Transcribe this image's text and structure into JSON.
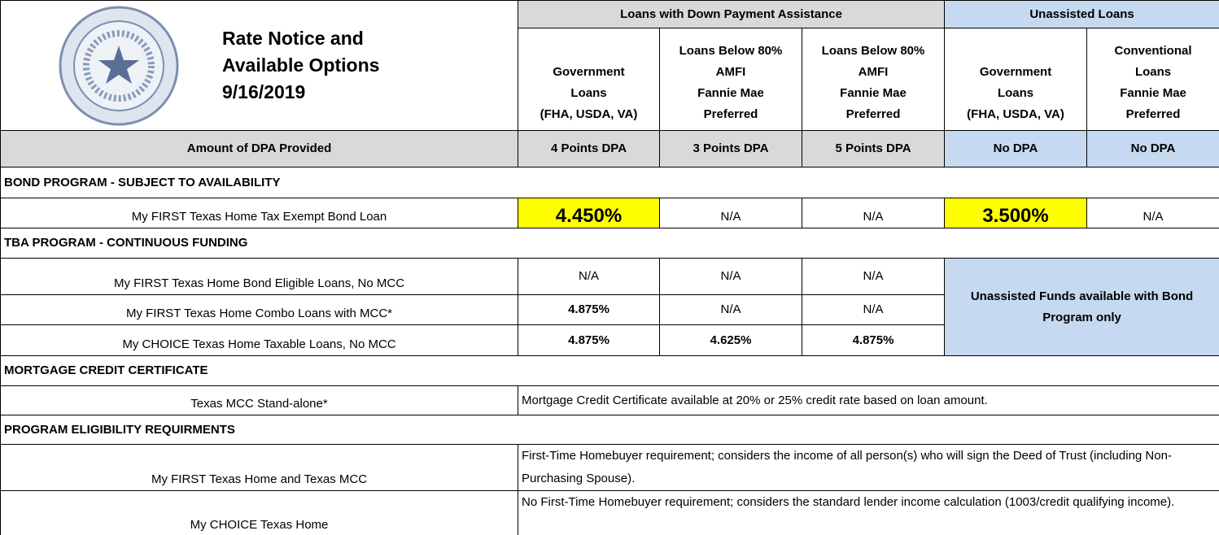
{
  "header": {
    "title": [
      "Rate Notice and",
      "Available Options",
      "9/16/2019"
    ],
    "group_assisted": "Loans with Down Payment Assistance",
    "group_unassisted": "Unassisted Loans",
    "columns": [
      [
        "Government",
        "Loans",
        "(FHA, USDA, VA)"
      ],
      [
        "Loans Below 80%",
        "AMFI",
        "Fannie Mae",
        "Preferred"
      ],
      [
        "Loans Below 80%",
        "AMFI",
        "Fannie Mae",
        "Preferred"
      ],
      [
        "Government",
        "Loans",
        "(FHA, USDA, VA)"
      ],
      [
        "Conventional",
        "Loans",
        "Fannie Mae",
        "Preferred"
      ]
    ],
    "dpa_label": "Amount of DPA Provided",
    "dpa": [
      "4 Points DPA",
      "3 Points DPA",
      "5 Points DPA",
      "No DPA",
      "No DPA"
    ]
  },
  "sections": [
    {
      "title": "BOND PROGRAM - SUBJECT TO AVAILABILITY",
      "rows": [
        {
          "label": "My FIRST Texas Home Tax Exempt Bond Loan",
          "cells": [
            "4.450%",
            "N/A",
            "N/A",
            "3.500%",
            "N/A"
          ]
        }
      ]
    },
    {
      "title": "TBA PROGRAM - CONTINUOUS FUNDING",
      "rows": [
        {
          "label": "My FIRST Texas Home Bond Eligible Loans, No MCC",
          "cells": [
            "N/A",
            "N/A",
            "N/A"
          ]
        },
        {
          "label": "My FIRST Texas Home Combo Loans with MCC*",
          "cells": [
            "4.875%",
            "N/A",
            "N/A"
          ]
        },
        {
          "label": "My CHOICE Texas Home Taxable Loans, No MCC",
          "cells": [
            "4.875%",
            "4.625%",
            "4.875%"
          ]
        }
      ],
      "note": "Unassisted Funds available with Bond Program only"
    },
    {
      "title": "MORTGAGE CREDIT CERTIFICATE",
      "rows": [
        {
          "label": "Texas MCC Stand-alone*",
          "text": "Mortgage Credit Certificate available at 20% or 25% credit rate based on loan amount."
        }
      ]
    },
    {
      "title": "PROGRAM ELIGIBILITY REQUIRMENTS",
      "rows": [
        {
          "label": "My FIRST Texas Home and Texas MCC",
          "text": "First-Time Homebuyer requirement; considers the income of all person(s) who will sign the Deed of Trust (including Non-Purchasing Spouse)."
        },
        {
          "label": "My CHOICE Texas Home",
          "text": "No First-Time Homebuyer requirement; considers the standard lender income calculation (1003/credit qualifying income)."
        }
      ]
    }
  ]
}
